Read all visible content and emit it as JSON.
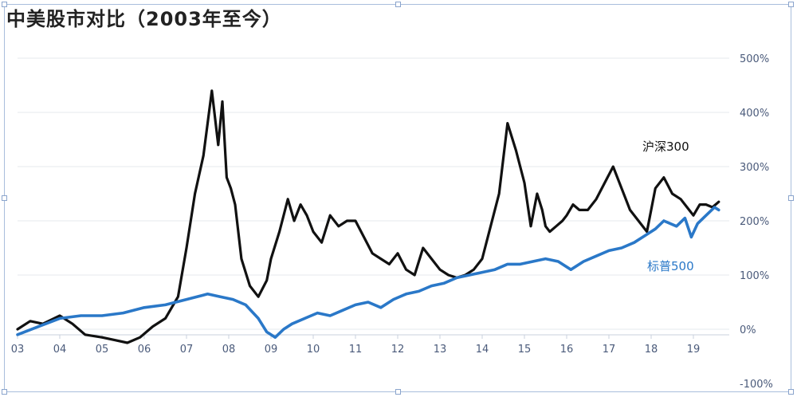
{
  "chart_data": {
    "type": "line",
    "title": "中美股市对比（2003年至今）",
    "xlabel": "",
    "ylabel": "",
    "x_tick_labels": [
      "03",
      "04",
      "05",
      "06",
      "07",
      "08",
      "09",
      "10",
      "11",
      "12",
      "13",
      "14",
      "15",
      "16",
      "17",
      "18",
      "19"
    ],
    "y_tick_labels": [
      "500%",
      "400%",
      "300%",
      "200%",
      "100%",
      "0%",
      "-100%"
    ],
    "y_tick_values": [
      500,
      400,
      300,
      200,
      100,
      0,
      -100
    ],
    "xlim": [
      2003.0,
      2020.0
    ],
    "ylim": [
      -100,
      530
    ],
    "y_axis_side": "right",
    "grid": "horizontal",
    "series": [
      {
        "name": "沪深300",
        "color": "#111111",
        "x": [
          2003.0,
          2003.3,
          2003.6,
          2004.0,
          2004.3,
          2004.6,
          2005.0,
          2005.3,
          2005.6,
          2005.9,
          2006.2,
          2006.5,
          2006.8,
          2007.0,
          2007.2,
          2007.4,
          2007.6,
          2007.75,
          2007.85,
          2007.95,
          2008.05,
          2008.15,
          2008.3,
          2008.5,
          2008.7,
          2008.9,
          2009.0,
          2009.2,
          2009.4,
          2009.55,
          2009.7,
          2009.85,
          2010.0,
          2010.2,
          2010.4,
          2010.6,
          2010.8,
          2011.0,
          2011.2,
          2011.4,
          2011.6,
          2011.8,
          2012.0,
          2012.2,
          2012.4,
          2012.6,
          2012.8,
          2013.0,
          2013.2,
          2013.4,
          2013.6,
          2013.8,
          2014.0,
          2014.2,
          2014.4,
          2014.6,
          2014.8,
          2015.0,
          2015.15,
          2015.3,
          2015.42,
          2015.5,
          2015.6,
          2015.75,
          2015.9,
          2016.0,
          2016.15,
          2016.3,
          2016.5,
          2016.7,
          2016.9,
          2017.1,
          2017.3,
          2017.5,
          2017.7,
          2017.9,
          2018.0,
          2018.1,
          2018.3,
          2018.5,
          2018.7,
          2018.9,
          2019.0,
          2019.15,
          2019.3,
          2019.45,
          2019.6
        ],
        "values": [
          0,
          15,
          10,
          25,
          10,
          -10,
          -15,
          -20,
          -25,
          -15,
          5,
          20,
          60,
          150,
          250,
          320,
          440,
          340,
          420,
          280,
          260,
          230,
          130,
          80,
          60,
          90,
          130,
          180,
          240,
          200,
          230,
          210,
          180,
          160,
          210,
          190,
          200,
          200,
          170,
          140,
          130,
          120,
          140,
          110,
          100,
          150,
          130,
          110,
          100,
          95,
          100,
          110,
          130,
          190,
          250,
          380,
          330,
          270,
          190,
          250,
          220,
          190,
          180,
          190,
          200,
          210,
          230,
          220,
          220,
          240,
          270,
          300,
          260,
          220,
          200,
          180,
          220,
          260,
          280,
          250,
          240,
          220,
          210,
          230,
          230,
          225,
          235
        ]
      },
      {
        "name": "标普500",
        "color": "#2a78c8",
        "x": [
          2003.0,
          2003.5,
          2004.0,
          2004.5,
          2005.0,
          2005.5,
          2006.0,
          2006.5,
          2007.0,
          2007.5,
          2007.8,
          2008.1,
          2008.4,
          2008.7,
          2008.9,
          2009.1,
          2009.3,
          2009.5,
          2009.8,
          2010.1,
          2010.4,
          2010.7,
          2011.0,
          2011.3,
          2011.6,
          2011.9,
          2012.2,
          2012.5,
          2012.8,
          2013.1,
          2013.4,
          2013.7,
          2014.0,
          2014.3,
          2014.6,
          2014.9,
          2015.2,
          2015.5,
          2015.8,
          2016.1,
          2016.4,
          2016.7,
          2017.0,
          2017.3,
          2017.6,
          2017.9,
          2018.1,
          2018.3,
          2018.6,
          2018.8,
          2018.95,
          2019.1,
          2019.3,
          2019.5,
          2019.6
        ],
        "values": [
          -10,
          5,
          20,
          25,
          25,
          30,
          40,
          45,
          55,
          65,
          60,
          55,
          45,
          20,
          -5,
          -15,
          0,
          10,
          20,
          30,
          25,
          35,
          45,
          50,
          40,
          55,
          65,
          70,
          80,
          85,
          95,
          100,
          105,
          110,
          120,
          120,
          125,
          130,
          125,
          110,
          125,
          135,
          145,
          150,
          160,
          175,
          185,
          200,
          190,
          205,
          170,
          195,
          210,
          225,
          220
        ]
      }
    ],
    "legend": "inline labels near series ends"
  }
}
